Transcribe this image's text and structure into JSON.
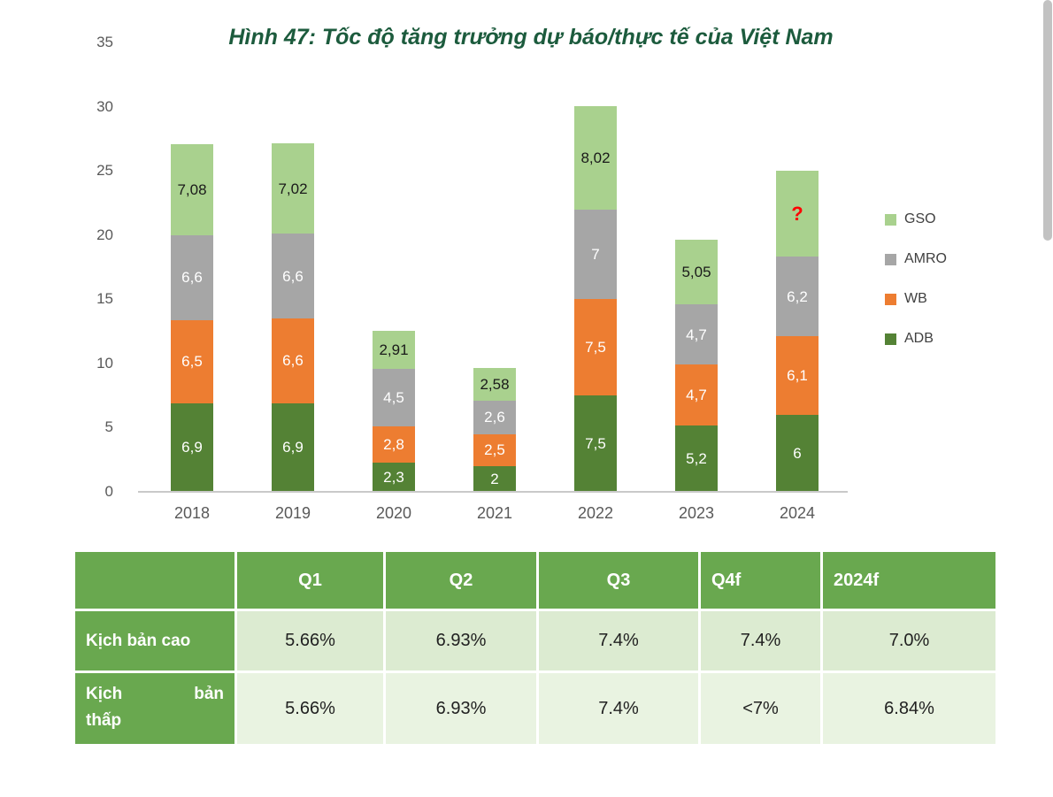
{
  "chart_data": {
    "type": "bar",
    "stacked": true,
    "title": "Hình 47: Tốc độ tăng trưởng dự báo/thực tế của Việt Nam",
    "categories": [
      "2018",
      "2019",
      "2020",
      "2021",
      "2022",
      "2023",
      "2024"
    ],
    "series": [
      {
        "name": "ADB",
        "color": "#548235",
        "label_color": "#FFFFFF",
        "values": [
          6.9,
          6.9,
          2.3,
          2,
          7.5,
          5.2,
          6
        ],
        "labels": [
          "6,9",
          "6,9",
          "2,3",
          "2",
          "7,5",
          "5,2",
          "6"
        ]
      },
      {
        "name": "WB",
        "color": "#ED7D31",
        "label_color": "#FFFFFF",
        "values": [
          6.5,
          6.6,
          2.8,
          2.5,
          7.5,
          4.7,
          6.1
        ],
        "labels": [
          "6,5",
          "6,6",
          "2,8",
          "2,5",
          "7,5",
          "4,7",
          "6,1"
        ]
      },
      {
        "name": "AMRO",
        "color": "#A6A6A6",
        "label_color": "#FFFFFF",
        "values": [
          6.6,
          6.6,
          4.5,
          2.6,
          7,
          4.7,
          6.2
        ],
        "labels": [
          "6,6",
          "6,6",
          "4,5",
          "2,6",
          "7",
          "4,7",
          "6,2"
        ]
      },
      {
        "name": "GSO",
        "color": "#A9D18E",
        "label_color": "#1A1A1A",
        "values": [
          7.08,
          7.02,
          2.91,
          2.58,
          8.02,
          5.05,
          6.7
        ],
        "labels": [
          "7,08",
          "7,02",
          "2,91",
          "2,58",
          "8,02",
          "5,05",
          "?"
        ]
      }
    ],
    "y_ticks": [
      0,
      5,
      10,
      15,
      20,
      25,
      30,
      35
    ],
    "ylim": [
      0,
      35
    ],
    "xlabel": "",
    "ylabel": "",
    "grid": false,
    "legend": [
      "GSO",
      "AMRO",
      "WB",
      "ADB"
    ],
    "legend_position": "right",
    "unknown_marker": "?",
    "unknown_marker_color": "#FF0000"
  },
  "table": {
    "headers": [
      "",
      "Q1",
      "Q2",
      "Q3",
      "Q4f",
      "2024f"
    ],
    "rows": [
      {
        "label": "Kịch bản cao",
        "values": [
          "5.66%",
          "6.93%",
          "7.4%",
          "7.4%",
          "7.0%"
        ]
      },
      {
        "label": "Kịch bản thấp",
        "values": [
          "5.66%",
          "6.93%",
          "7.4%",
          "<7%",
          "6.84%"
        ]
      }
    ]
  },
  "colors": {
    "title": "#1C5B3D",
    "table_green": "#69A84F",
    "row_band_1": "#DCEBD1",
    "row_band_2": "#E9F3E1",
    "axis_text": "#595959",
    "unknown_marker": "#FF0000"
  }
}
